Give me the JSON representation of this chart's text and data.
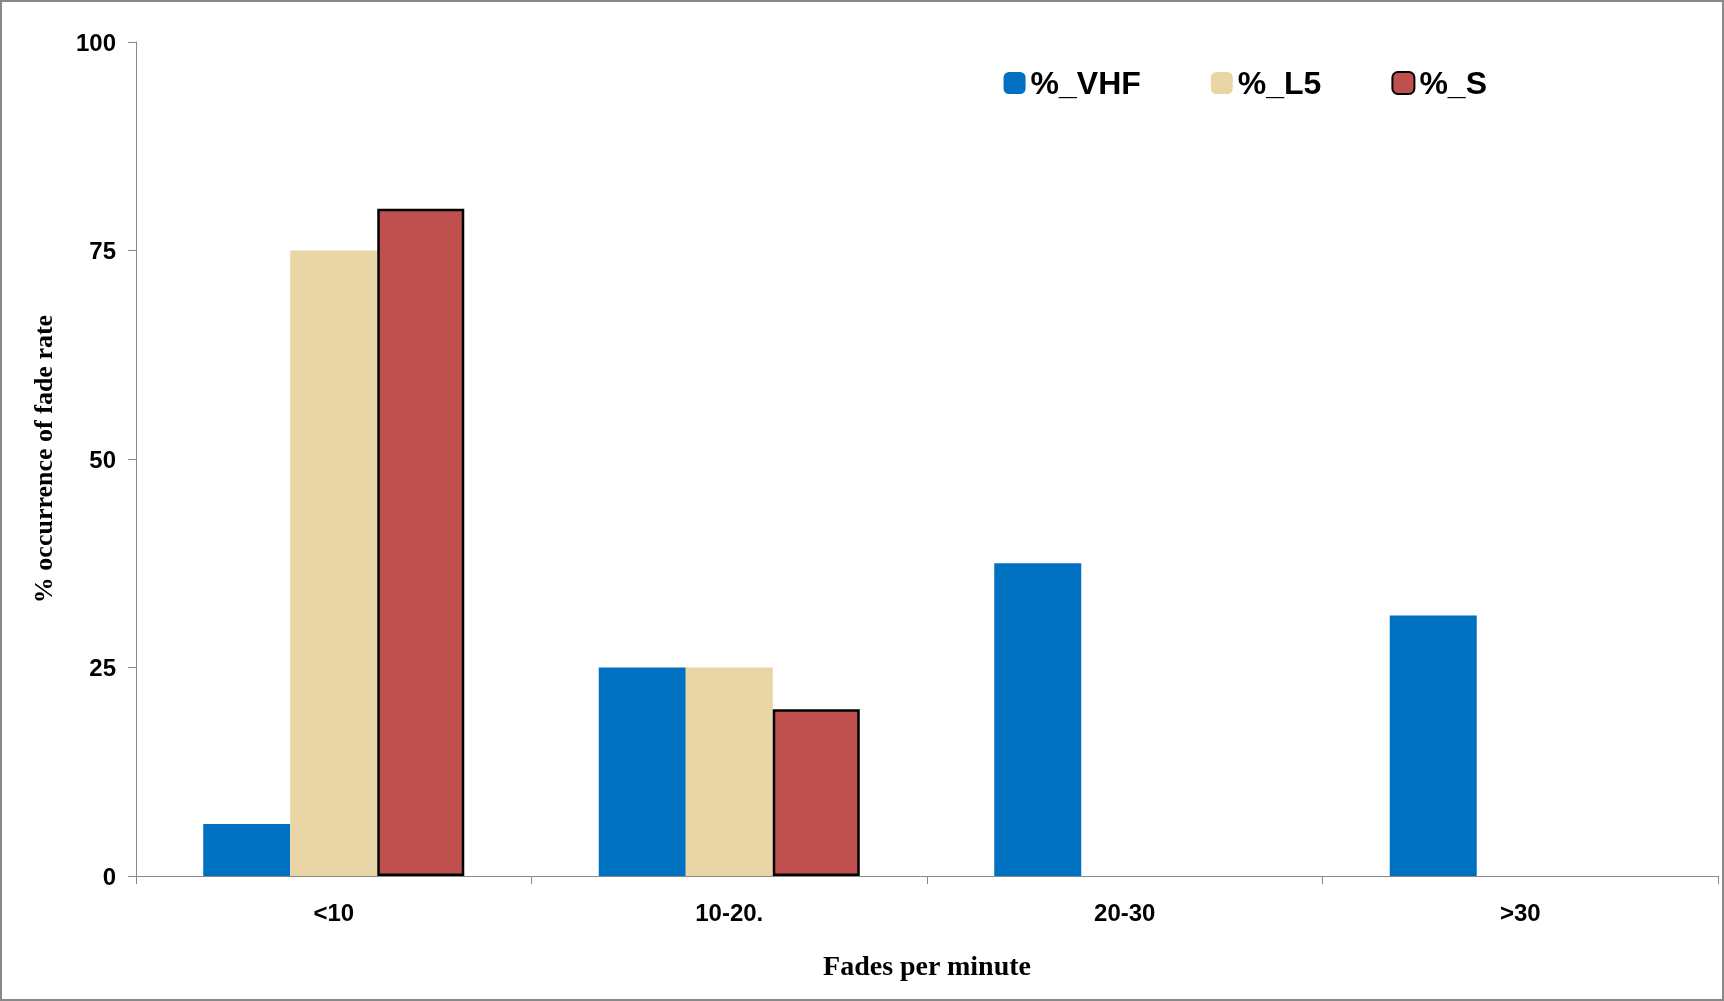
{
  "chart_data": {
    "type": "bar",
    "xlabel": "Fades per minute",
    "ylabel": "% occurrence of fade rate",
    "categories": [
      "<10",
      "10-20.",
      "20-30",
      ">30"
    ],
    "series": [
      {
        "name": "%_VHF",
        "color": "#0070c0",
        "values": [
          6.25,
          25,
          37.5,
          31.25
        ]
      },
      {
        "name": "%_L5",
        "color": "#e9d5a5",
        "values": [
          75,
          25,
          null,
          null
        ]
      },
      {
        "name": "%_S",
        "color": "#c0504d",
        "values": [
          80,
          20,
          null,
          null
        ]
      }
    ],
    "ylim": [
      0,
      100
    ],
    "yticks": [
      0,
      25,
      50,
      75,
      100
    ],
    "grid": false,
    "legend": "top right"
  }
}
